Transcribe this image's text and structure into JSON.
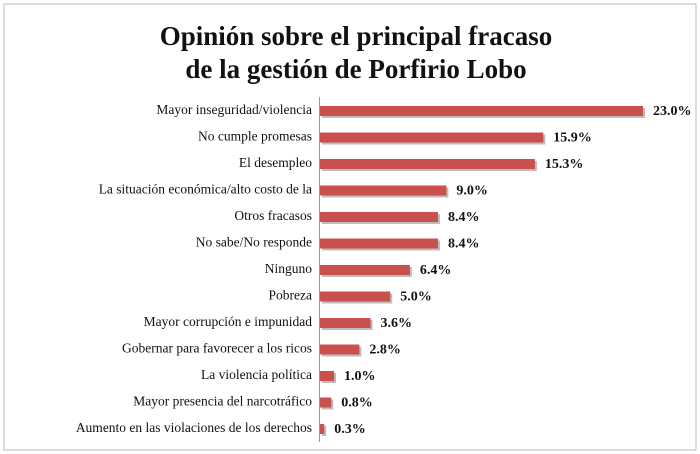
{
  "chart_data": {
    "type": "hbar",
    "title": [
      "Opinión sobre el principal fracaso",
      "de la gestión de Porfirio Lobo"
    ],
    "categories": [
      "Mayor inseguridad/violencia",
      "No cumple promesas",
      "El desempleo",
      "La situación económica/alto costo de la",
      "Otros fracasos",
      "No sabe/No responde",
      "Ninguno",
      "Pobreza",
      "Mayor corrupción e impunidad",
      "Gobernar para favorecer a los ricos",
      "La violencia política",
      "Mayor presencia del narcotráfico",
      "Aumento en las violaciones de los derechos"
    ],
    "values": [
      23.0,
      15.9,
      15.3,
      9.0,
      8.4,
      8.4,
      6.4,
      5.0,
      3.6,
      2.8,
      1.0,
      0.8,
      0.3
    ],
    "value_labels": [
      "23.0%",
      "15.9%",
      "15.3%",
      "9.0%",
      "8.4%",
      "8.4%",
      "6.4%",
      "5.0%",
      "3.6%",
      "2.8%",
      "1.0%",
      "0.8%",
      "0.3%"
    ],
    "color": "#c9504c"
  }
}
